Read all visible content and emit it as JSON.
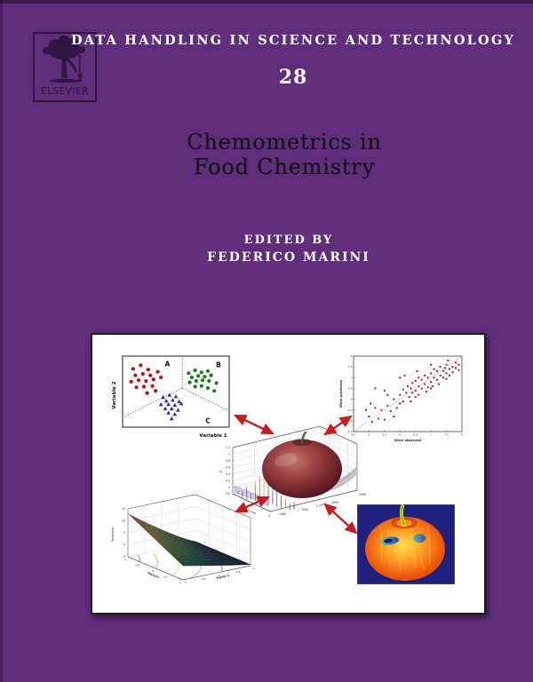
{
  "cover": {
    "background_color": "#5f2d7a",
    "series_title": "DATA HANDLING IN SCIENCE AND TECHNOLOGY",
    "volume_number": "28",
    "title_line1": "Chemometrics in",
    "title_line2": "Food Chemistry",
    "edited_by_label": "EDITED BY",
    "editor_name": "FEDERICO MARINI",
    "title_color": "#0c0a0e",
    "text_color": "#ffffff"
  },
  "publisher": {
    "name": "ELSEVIER",
    "logo_color": "#2b1640"
  },
  "figure_panel": {
    "background_color": "#ffffff",
    "border_color": "#1c1c1c",
    "arrow_color": "#c41e1e"
  },
  "chart_data": [
    {
      "id": "classification_plot",
      "type": "scatter",
      "xlabel": "Variable 1",
      "ylabel": "Variable 2",
      "region_labels": [
        "A",
        "B",
        "C"
      ],
      "series": [
        {
          "name": "A",
          "marker": "circle",
          "color": "#b51212",
          "points": [
            [
              0.1,
              0.18
            ],
            [
              0.17,
              0.13
            ],
            [
              0.24,
              0.19
            ],
            [
              0.12,
              0.27
            ],
            [
              0.19,
              0.25
            ],
            [
              0.26,
              0.27
            ],
            [
              0.33,
              0.22
            ],
            [
              0.08,
              0.36
            ],
            [
              0.15,
              0.34
            ],
            [
              0.22,
              0.35
            ],
            [
              0.29,
              0.33
            ],
            [
              0.36,
              0.3
            ],
            [
              0.13,
              0.44
            ],
            [
              0.2,
              0.43
            ],
            [
              0.28,
              0.42
            ],
            [
              0.23,
              0.52
            ],
            [
              0.31,
              0.49
            ]
          ]
        },
        {
          "name": "B",
          "marker": "circle",
          "color": "#1e7a1e",
          "points": [
            [
              0.62,
              0.24
            ],
            [
              0.68,
              0.2
            ],
            [
              0.74,
              0.23
            ],
            [
              0.8,
              0.21
            ],
            [
              0.65,
              0.3
            ],
            [
              0.71,
              0.28
            ],
            [
              0.77,
              0.29
            ],
            [
              0.83,
              0.27
            ],
            [
              0.63,
              0.37
            ],
            [
              0.69,
              0.35
            ],
            [
              0.75,
              0.34
            ],
            [
              0.81,
              0.35
            ],
            [
              0.88,
              0.38
            ],
            [
              0.68,
              0.43
            ],
            [
              0.74,
              0.42
            ],
            [
              0.8,
              0.45
            ],
            [
              0.86,
              0.49
            ]
          ]
        },
        {
          "name": "C",
          "marker": "triangle",
          "color": "#2a2aa8",
          "points": [
            [
              0.38,
              0.58
            ],
            [
              0.44,
              0.55
            ],
            [
              0.5,
              0.57
            ],
            [
              0.41,
              0.63
            ],
            [
              0.47,
              0.62
            ],
            [
              0.53,
              0.64
            ],
            [
              0.36,
              0.68
            ],
            [
              0.43,
              0.68
            ],
            [
              0.49,
              0.69
            ],
            [
              0.55,
              0.67
            ],
            [
              0.4,
              0.74
            ],
            [
              0.46,
              0.74
            ],
            [
              0.52,
              0.76
            ],
            [
              0.43,
              0.8
            ],
            [
              0.49,
              0.82
            ],
            [
              0.46,
              0.88
            ]
          ]
        }
      ]
    },
    {
      "id": "prediction_plot",
      "type": "scatter",
      "xlabel": "Wine observed",
      "ylabel": "Wine predicted",
      "xlim": [
        4.5,
        8
      ],
      "ylim": [
        4.5,
        8
      ],
      "ticks": [
        4.5,
        5,
        5.5,
        6,
        6.5,
        7,
        7.5,
        8
      ],
      "marker": "square",
      "color": "#b01818",
      "fit_line": true,
      "points": [
        [
          5.0,
          5.2
        ],
        [
          5.1,
          4.95
        ],
        [
          5.2,
          5.6
        ],
        [
          5.3,
          5.1
        ],
        [
          5.4,
          5.5
        ],
        [
          5.5,
          5.05
        ],
        [
          5.5,
          6.4
        ],
        [
          5.6,
          5.7
        ],
        [
          5.7,
          5.45
        ],
        [
          5.8,
          6.0
        ],
        [
          5.9,
          5.6
        ],
        [
          6.0,
          6.2
        ],
        [
          6.0,
          5.8
        ],
        [
          6.1,
          6.45
        ],
        [
          6.1,
          5.9
        ],
        [
          6.2,
          6.3
        ],
        [
          6.25,
          6.6
        ],
        [
          6.3,
          6.1
        ],
        [
          6.35,
          6.5
        ],
        [
          6.4,
          6.3
        ],
        [
          6.4,
          6.75
        ],
        [
          6.5,
          6.4
        ],
        [
          6.5,
          6.85
        ],
        [
          6.5,
          6.1
        ],
        [
          6.6,
          6.6
        ],
        [
          6.6,
          7.0
        ],
        [
          6.7,
          6.5
        ],
        [
          6.7,
          6.9
        ],
        [
          6.8,
          6.7
        ],
        [
          6.8,
          7.1
        ],
        [
          6.9,
          6.55
        ],
        [
          6.9,
          7.0
        ],
        [
          7.0,
          6.8
        ],
        [
          7.0,
          7.2
        ],
        [
          7.0,
          6.5
        ],
        [
          7.1,
          7.0
        ],
        [
          7.1,
          7.4
        ],
        [
          7.2,
          6.9
        ],
        [
          7.2,
          7.3
        ],
        [
          7.3,
          7.1
        ],
        [
          7.3,
          7.5
        ],
        [
          7.4,
          7.0
        ],
        [
          7.4,
          7.3
        ],
        [
          7.5,
          7.2
        ],
        [
          7.5,
          7.6
        ],
        [
          7.5,
          6.95
        ],
        [
          7.6,
          7.4
        ],
        [
          7.6,
          7.1
        ],
        [
          7.7,
          7.5
        ],
        [
          7.7,
          7.25
        ],
        [
          7.8,
          7.45
        ],
        [
          7.8,
          7.7
        ],
        [
          7.9,
          7.35
        ],
        [
          4.9,
          5.5
        ],
        [
          5.2,
          6.5
        ],
        [
          5.8,
          5.2
        ],
        [
          6.0,
          7.0
        ],
        [
          6.6,
          6.2
        ],
        [
          7.0,
          7.6
        ],
        [
          7.9,
          7.6
        ],
        [
          5.6,
          6.2
        ],
        [
          6.35,
          5.9
        ],
        [
          6.85,
          6.35
        ],
        [
          7.25,
          6.7
        ],
        [
          7.55,
          7.8
        ],
        [
          5.05,
          5.8
        ],
        [
          6.15,
          7.1
        ],
        [
          6.55,
          7.3
        ],
        [
          7.05,
          6.6
        ],
        [
          7.45,
          7.45
        ]
      ]
    },
    {
      "id": "spectra_3d_plot",
      "type": "line3d",
      "zlabel": "z",
      "z_ticks": [
        1.2,
        1,
        0.8,
        0.6,
        0.4,
        0.2,
        0,
        -0.2
      ],
      "x_axis_label": "λ (nm)",
      "y_axis_label": "λ (nm)",
      "x_origin_tick": "0",
      "y_tick_labels": [
        "1000",
        "1500",
        "2000",
        "2500"
      ],
      "palette": [
        "#7a5aa0",
        "#3a8a3a",
        "#b03030",
        "#c8b020",
        "#4060b0",
        "#a040a0"
      ],
      "spike_heights": [
        4,
        7,
        3,
        10,
        5,
        14,
        6,
        3,
        12,
        22,
        8,
        4,
        26,
        11,
        5,
        34,
        40,
        16,
        7,
        28,
        12,
        6,
        18,
        8,
        4,
        14,
        6,
        10,
        4,
        7,
        3,
        5,
        8,
        4
      ]
    },
    {
      "id": "response_surface_plot",
      "type": "surface",
      "xlabel": "Factor 1",
      "ylabel": "Factor2",
      "zlabel": "Response",
      "z_ticks": [
        15,
        10,
        5,
        0,
        -5
      ],
      "x_ticks": [
        1,
        0.5,
        0,
        -0.5,
        -1
      ],
      "y_ticks": [
        -1,
        -0.5,
        0,
        0.5,
        1
      ],
      "surface_color_stops": [
        [
          13,
          "#7a432a"
        ],
        [
          8,
          "#6d5a30"
        ],
        [
          4,
          "#3f5730"
        ],
        [
          0,
          "#1e4034"
        ],
        [
          -2,
          "#15293d"
        ],
        [
          -4.5,
          "#0a1424"
        ]
      ],
      "contour_levels": [
        10,
        6,
        2,
        -1,
        -3
      ],
      "contour_colors": [
        "#c23b26",
        "#de8a28",
        "#d8c832",
        "#5aa8c8",
        "#3850b8"
      ]
    },
    {
      "id": "thermal_apple_image",
      "type": "heatmap-image",
      "background_color": "#20207e",
      "palette": [
        "#ffe050",
        "#ff9c28",
        "#ef5a08",
        "#c03000",
        "#30c8c0",
        "#2040c0"
      ]
    }
  ]
}
